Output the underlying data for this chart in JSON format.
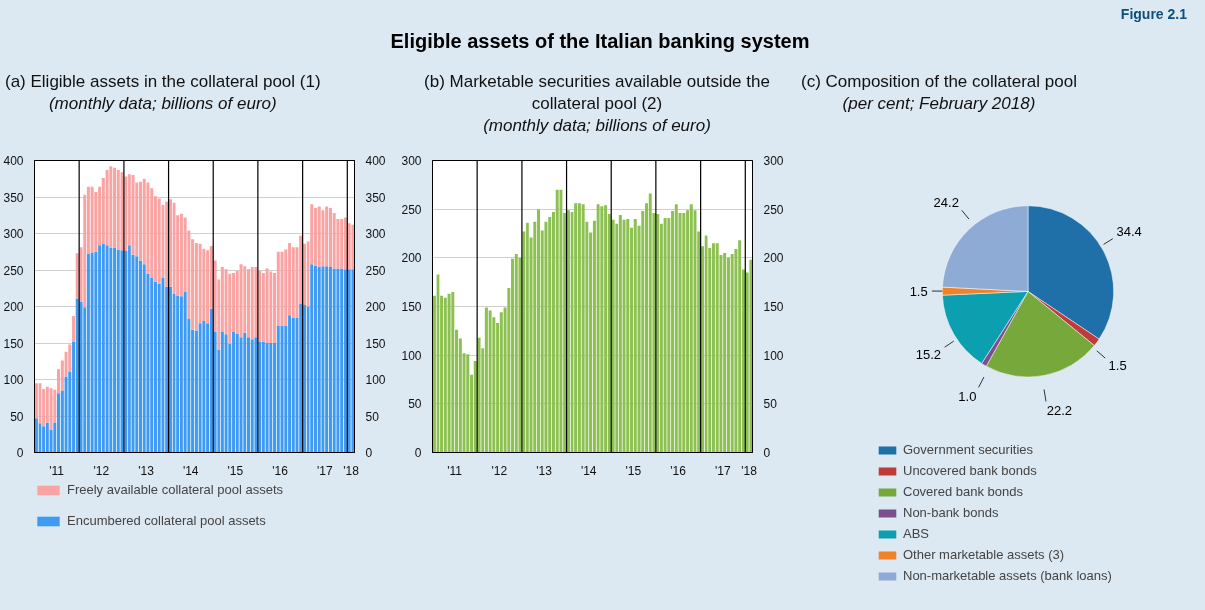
{
  "chart_data": [
    {
      "type": "bar",
      "title": "(a) Eligible assets in the collateral pool (1)",
      "subtitle": "(monthly data; billions of euro)",
      "annotations": [
        "Figure 2.1",
        "Eligible assets of the Italian banking system"
      ],
      "x": [
        "2011-01",
        "2011-02",
        "2011-03",
        "2011-04",
        "2011-05",
        "2011-06",
        "2011-07",
        "2011-08",
        "2011-09",
        "2011-10",
        "2011-11",
        "2011-12",
        "2012-01",
        "2012-02",
        "2012-03",
        "2012-04",
        "2012-05",
        "2012-06",
        "2012-07",
        "2012-08",
        "2012-09",
        "2012-10",
        "2012-11",
        "2012-12",
        "2013-01",
        "2013-02",
        "2013-03",
        "2013-04",
        "2013-05",
        "2013-06",
        "2013-07",
        "2013-08",
        "2013-09",
        "2013-10",
        "2013-11",
        "2013-12",
        "2014-01",
        "2014-02",
        "2014-03",
        "2014-04",
        "2014-05",
        "2014-06",
        "2014-07",
        "2014-08",
        "2014-09",
        "2014-10",
        "2014-11",
        "2014-12",
        "2015-01",
        "2015-02",
        "2015-03",
        "2015-04",
        "2015-05",
        "2015-06",
        "2015-07",
        "2015-08",
        "2015-09",
        "2015-10",
        "2015-11",
        "2015-12",
        "2016-01",
        "2016-02",
        "2016-03",
        "2016-04",
        "2016-05",
        "2016-06",
        "2016-07",
        "2016-08",
        "2016-09",
        "2016-10",
        "2016-11",
        "2016-12",
        "2017-01",
        "2017-02",
        "2017-03",
        "2017-04",
        "2017-05",
        "2017-06",
        "2017-07",
        "2017-08",
        "2017-09",
        "2017-10",
        "2017-11",
        "2017-12",
        "2018-01",
        "2018-02"
      ],
      "stacked": true,
      "series": [
        {
          "name": "Encumbered collateral pool assets",
          "color": "#3f9af3",
          "values": [
            47,
            40,
            36,
            41,
            31,
            41,
            81,
            85,
            104,
            111,
            152,
            211,
            207,
            199,
            272,
            274,
            275,
            284,
            286,
            284,
            280,
            280,
            278,
            277,
            276,
            284,
            271,
            269,
            263,
            258,
            245,
            239,
            234,
            231,
            239,
            227,
            227,
            217,
            215,
            214,
            220,
            183,
            168,
            167,
            177,
            180,
            177,
            197,
            165,
            141,
            165,
            162,
            149,
            165,
            163,
            158,
            164,
            158,
            155,
            158,
            152,
            152,
            150,
            150,
            150,
            174,
            174,
            174,
            188,
            185,
            185,
            204,
            202,
            200,
            258,
            256,
            254,
            255,
            255,
            254,
            252,
            252,
            252,
            251,
            251,
            251
          ]
        },
        {
          "name": "Freely available collateral pool assets",
          "color": "#f9a3a3",
          "values": [
            48,
            55,
            51,
            49,
            57,
            45,
            33,
            41,
            34,
            37,
            35,
            62,
            74,
            154,
            92,
            90,
            82,
            80,
            90,
            103,
            112,
            110,
            109,
            107,
            102,
            97,
            109,
            101,
            108,
            117,
            125,
            123,
            117,
            117,
            100,
            117,
            120,
            125,
            110,
            113,
            102,
            121,
            124,
            120,
            109,
            99,
            100,
            86,
            98,
            96,
            89,
            89,
            96,
            81,
            86,
            100,
            91,
            93,
            99,
            96,
            97,
            94,
            102,
            98,
            96,
            101,
            101,
            104,
            99,
            96,
            96,
            93,
            84,
            89,
            82,
            79,
            83,
            77,
            82,
            81,
            76,
            68,
            68,
            71,
            63,
            61
          ]
        }
      ],
      "xlim": [
        "2011-01",
        "2018-03"
      ],
      "xticks": [
        {
          "value": "2011-07",
          "label": "'11"
        },
        {
          "value": "2012-07",
          "label": "'12"
        },
        {
          "value": "2013-07",
          "label": "'13"
        },
        {
          "value": "2014-07",
          "label": "'14"
        },
        {
          "value": "2015-07",
          "label": "'15"
        },
        {
          "value": "2016-07",
          "label": "'16"
        },
        {
          "value": "2017-07",
          "label": "'17"
        },
        {
          "value": "2018-02",
          "label": "'18"
        }
      ],
      "ylim": [
        0,
        400
      ],
      "yticks": [
        0,
        50,
        100,
        150,
        200,
        250,
        300,
        350,
        400
      ],
      "y2lim": [
        0,
        400
      ],
      "y2ticks": [
        0,
        50,
        100,
        150,
        200,
        250,
        300,
        350,
        400
      ],
      "ref_lines": [
        {
          "axis": "x",
          "value": "2012-01",
          "color": "#000000"
        },
        {
          "axis": "x",
          "value": "2013-01",
          "color": "#000000"
        },
        {
          "axis": "x",
          "value": "2014-01",
          "color": "#000000"
        },
        {
          "axis": "x",
          "value": "2015-01",
          "color": "#000000"
        },
        {
          "axis": "x",
          "value": "2016-01",
          "color": "#000000"
        },
        {
          "axis": "x",
          "value": "2017-01",
          "color": "#000000"
        },
        {
          "axis": "x",
          "value": "2018-01",
          "color": "#000000"
        }
      ],
      "grid": "y",
      "legend": "bottom"
    },
    {
      "type": "bar",
      "title": "(b) Marketable securities available outside the collateral pool (2)",
      "subtitle": "(monthly data; billions of euro)",
      "x": [
        "2011-01",
        "2011-02",
        "2011-03",
        "2011-04",
        "2011-05",
        "2011-06",
        "2011-07",
        "2011-08",
        "2011-09",
        "2011-10",
        "2011-11",
        "2011-12",
        "2012-01",
        "2012-02",
        "2012-03",
        "2012-04",
        "2012-05",
        "2012-06",
        "2012-07",
        "2012-08",
        "2012-09",
        "2012-10",
        "2012-11",
        "2012-12",
        "2013-01",
        "2013-02",
        "2013-03",
        "2013-04",
        "2013-05",
        "2013-06",
        "2013-07",
        "2013-08",
        "2013-09",
        "2013-10",
        "2013-11",
        "2013-12",
        "2014-01",
        "2014-02",
        "2014-03",
        "2014-04",
        "2014-05",
        "2014-06",
        "2014-07",
        "2014-08",
        "2014-09",
        "2014-10",
        "2014-11",
        "2014-12",
        "2015-01",
        "2015-02",
        "2015-03",
        "2015-04",
        "2015-05",
        "2015-06",
        "2015-07",
        "2015-08",
        "2015-09",
        "2015-10",
        "2015-11",
        "2015-12",
        "2016-01",
        "2016-02",
        "2016-03",
        "2016-04",
        "2016-05",
        "2016-06",
        "2016-07",
        "2016-08",
        "2016-09",
        "2016-10",
        "2016-11",
        "2016-12",
        "2017-01",
        "2017-02",
        "2017-03",
        "2017-04",
        "2017-05",
        "2017-06",
        "2017-07",
        "2017-08",
        "2017-09",
        "2017-10",
        "2017-11",
        "2017-12",
        "2018-01",
        "2018-02"
      ],
      "values": [
        161,
        183,
        161,
        159,
        163,
        165,
        126,
        117,
        102,
        101,
        80,
        94,
        118,
        107,
        149,
        146,
        139,
        133,
        144,
        149,
        169,
        199,
        204,
        200,
        227,
        236,
        221,
        237,
        250,
        228,
        237,
        242,
        247,
        270,
        270,
        246,
        249,
        247,
        256,
        256,
        255,
        237,
        226,
        238,
        255,
        253,
        254,
        245,
        239,
        235,
        244,
        239,
        240,
        231,
        240,
        233,
        248,
        256,
        266,
        246,
        245,
        235,
        241,
        241,
        248,
        255,
        246,
        246,
        249,
        255,
        249,
        227,
        212,
        223,
        210,
        215,
        215,
        203,
        205,
        200,
        204,
        209,
        218,
        188,
        185,
        198
      ],
      "color": "#8cc152",
      "xlim": [
        "2011-01",
        "2018-03"
      ],
      "xticks": [
        {
          "value": "2011-07",
          "label": "'11"
        },
        {
          "value": "2012-07",
          "label": "'12"
        },
        {
          "value": "2013-07",
          "label": "'13"
        },
        {
          "value": "2014-07",
          "label": "'14"
        },
        {
          "value": "2015-07",
          "label": "'15"
        },
        {
          "value": "2016-07",
          "label": "'16"
        },
        {
          "value": "2017-07",
          "label": "'17"
        },
        {
          "value": "2018-02",
          "label": "'18"
        }
      ],
      "ylim": [
        0,
        300
      ],
      "yticks": [
        0,
        50,
        100,
        150,
        200,
        250,
        300
      ],
      "y2lim": [
        0,
        300
      ],
      "y2ticks": [
        0,
        50,
        100,
        150,
        200,
        250,
        300
      ],
      "ref_lines": [
        {
          "axis": "x",
          "value": "2012-01",
          "color": "#000000"
        },
        {
          "axis": "x",
          "value": "2013-01",
          "color": "#000000"
        },
        {
          "axis": "x",
          "value": "2014-01",
          "color": "#000000"
        },
        {
          "axis": "x",
          "value": "2015-01",
          "color": "#000000"
        },
        {
          "axis": "x",
          "value": "2016-01",
          "color": "#000000"
        },
        {
          "axis": "x",
          "value": "2017-01",
          "color": "#000000"
        },
        {
          "axis": "x",
          "value": "2018-01",
          "color": "#000000"
        }
      ],
      "grid": "y"
    },
    {
      "type": "pie",
      "title": "(c) Composition of the collateral pool",
      "subtitle": "(per cent; February 2018)",
      "categories": [
        "Government securities",
        "Uncovered bank bonds",
        "Covered bank bonds",
        "Non-bank bonds",
        "ABS",
        "Other marketable assets (3)",
        "Non-marketable assets (bank loans)"
      ],
      "values": [
        34.4,
        1.5,
        22.2,
        1.0,
        15.2,
        1.5,
        24.2
      ],
      "colors": [
        "#1f6fa8",
        "#c0393b",
        "#77a83c",
        "#7b4f8e",
        "#0b9fb0",
        "#f08228",
        "#8eabd6"
      ],
      "value_labels": [
        "34.4",
        "1.5",
        "22.2",
        "1.0",
        "15.2",
        "1.5",
        "24.2"
      ],
      "legend": "bottom"
    }
  ]
}
